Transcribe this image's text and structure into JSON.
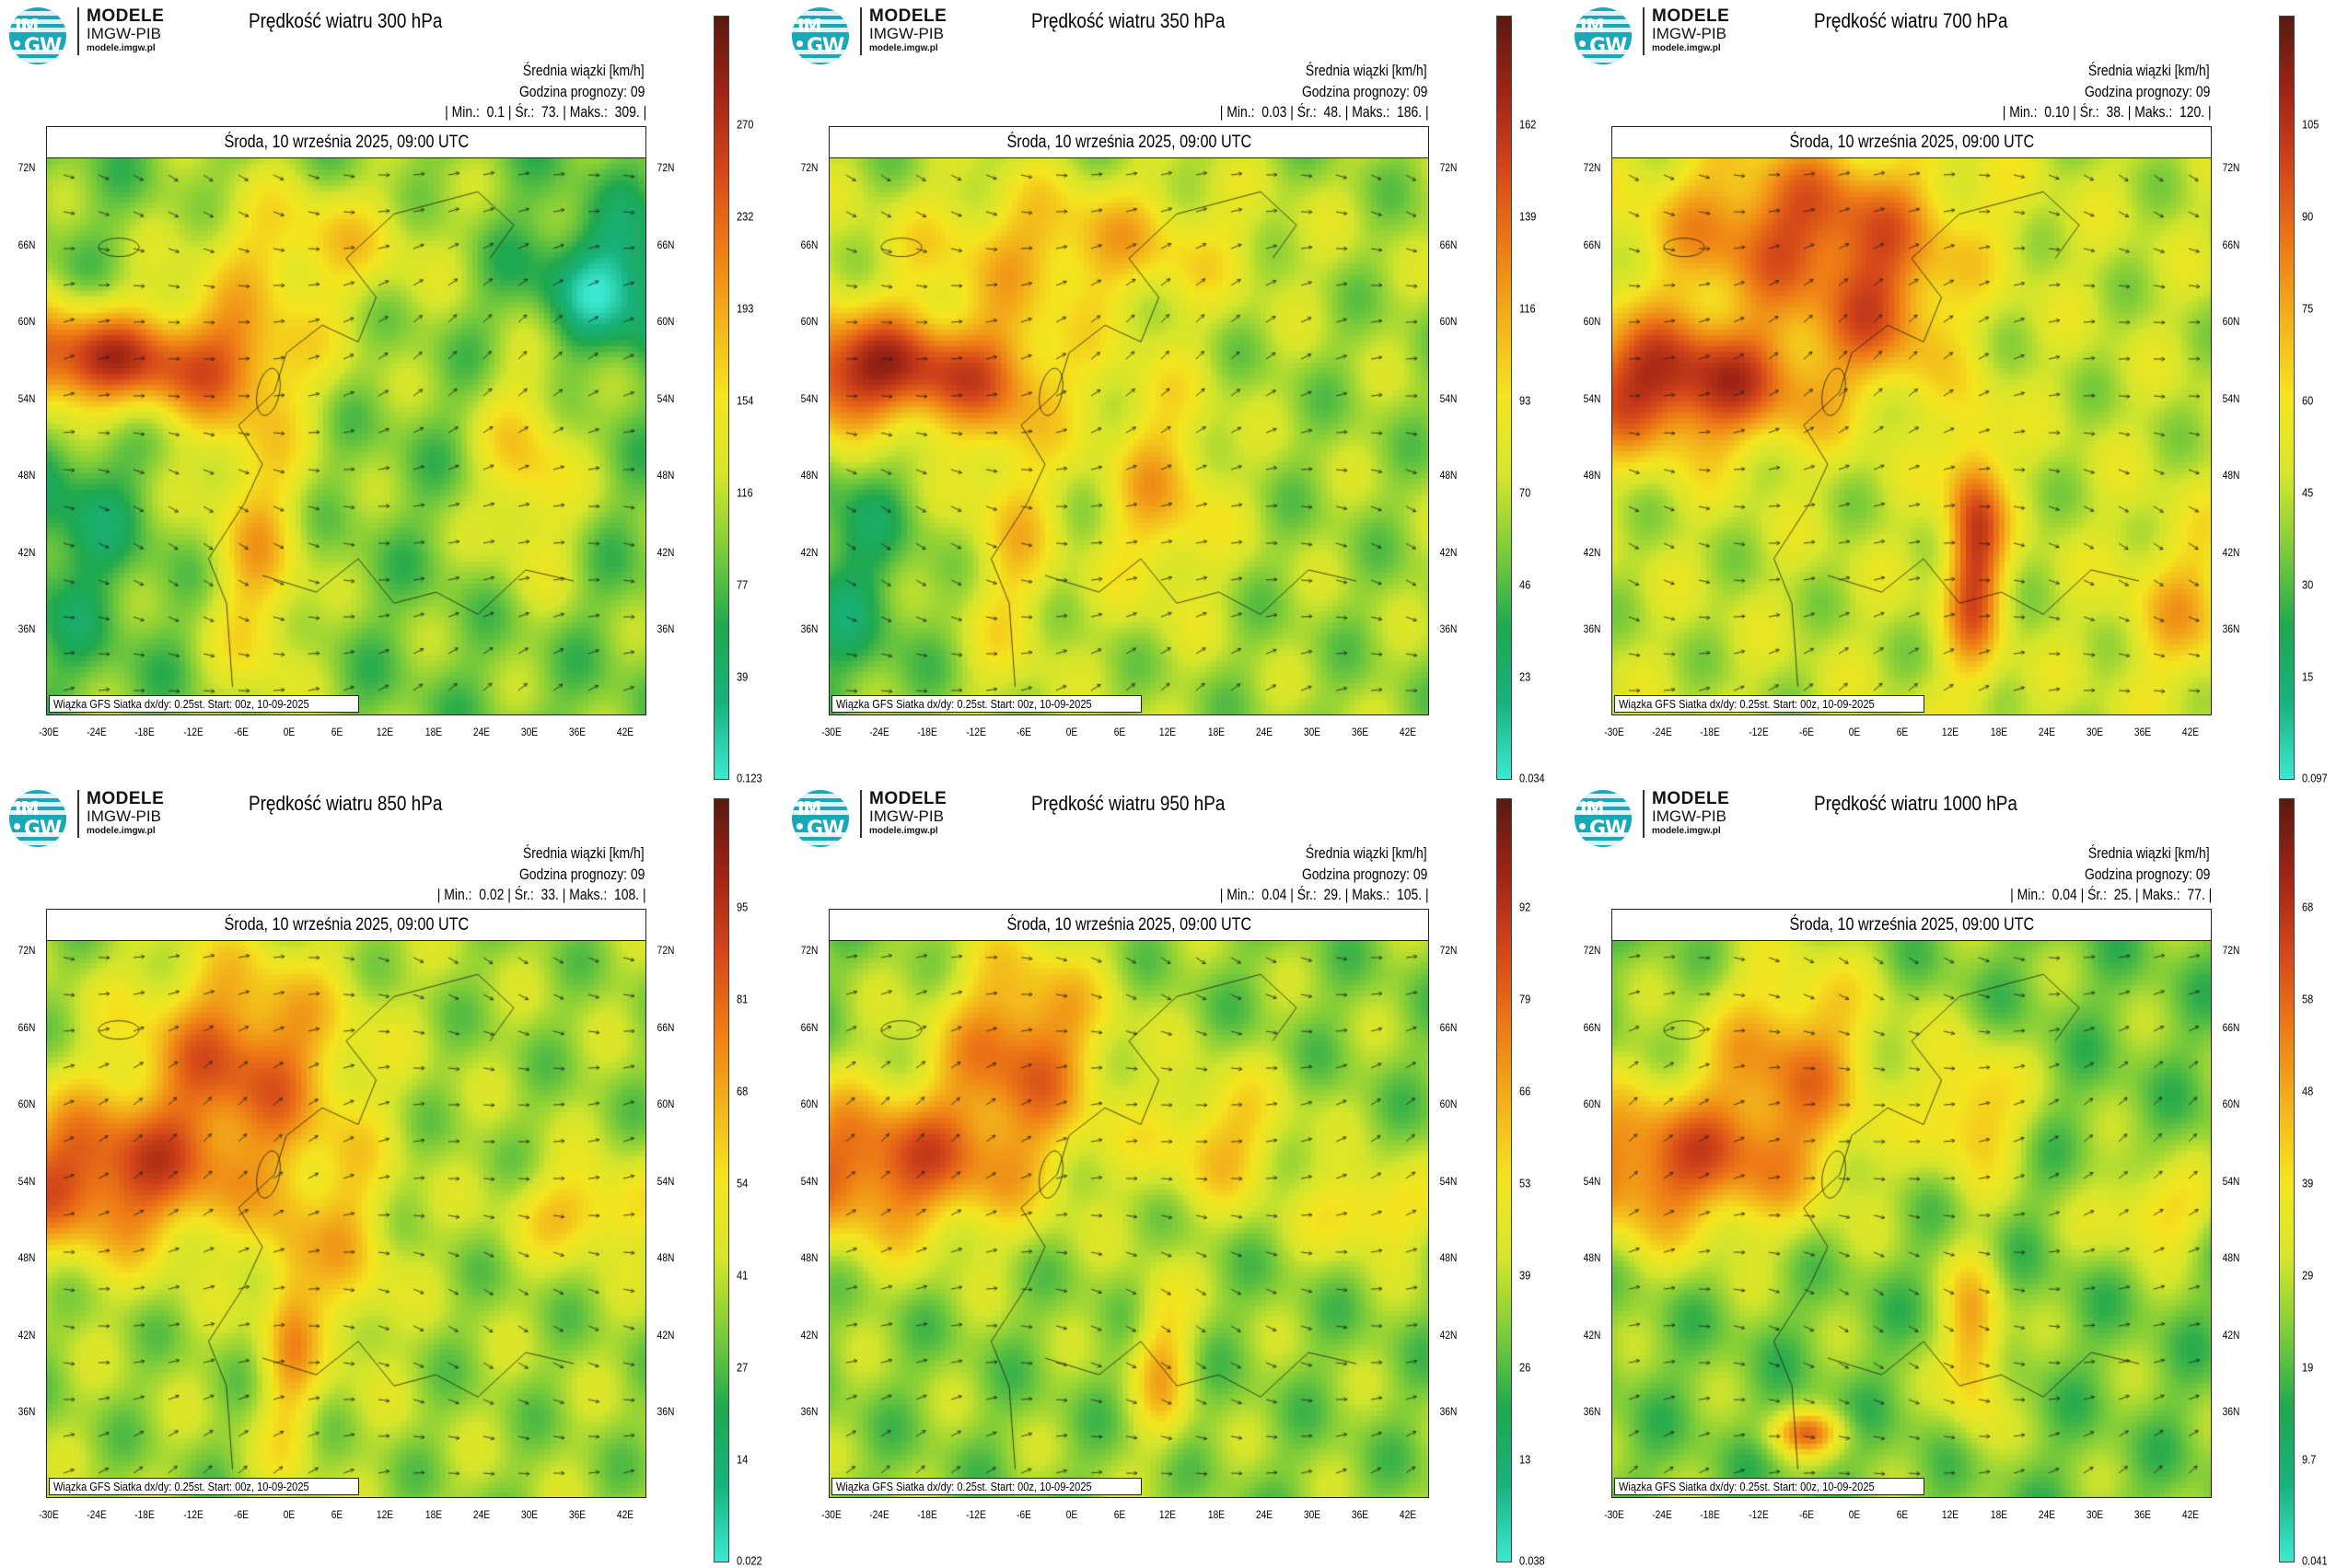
{
  "brand": {
    "name": "MODELE",
    "org": "IMGW-PIB",
    "url": "modele.imgw.pl",
    "logo_top": "IM",
    "logo_bottom": "GW",
    "logo_color": "#1aa7b8"
  },
  "common": {
    "info_line1": "Średnia wiązki [km/h]",
    "info_line2": "Godzina prognozy: 09",
    "date": "Środa, 10 września 2025, 09:00 UTC",
    "source": "Wiązka GFS Siatka dx/dy: 0.25st. Start: 00z, 10-09-2025",
    "min_label": "Min.:",
    "mean_label": "Śr.:",
    "max_label": "Maks.:"
  },
  "axes": {
    "lat_labels": [
      "72N",
      "66N",
      "60N",
      "54N",
      "48N",
      "42N",
      "36N"
    ],
    "lon_labels": [
      "-30E",
      "-24E",
      "-18E",
      "-12E",
      "-6E",
      "0E",
      "6E",
      "12E",
      "18E",
      "24E",
      "30E",
      "36E",
      "42E"
    ]
  },
  "colormap": [
    "#3de8d2",
    "#18b27e",
    "#1fa84f",
    "#7dcc3a",
    "#d6e62c",
    "#f5e51f",
    "#f3b21b",
    "#ee7a16",
    "#d4461a",
    "#a02416",
    "#5a1a10"
  ],
  "panels": [
    {
      "title": "Prędkość wiatru 300 hPa",
      "min": "0.1",
      "mean": "73.",
      "max": "309.",
      "colorbar": [
        "270",
        "232",
        "193",
        "154",
        "116",
        "77",
        "39",
        "0.123"
      ]
    },
    {
      "title": "Prędkość wiatru 350 hPa",
      "min": "0.03",
      "mean": "48.",
      "max": "186.",
      "colorbar": [
        "162",
        "139",
        "116",
        "93",
        "70",
        "46",
        "23",
        "0.034"
      ]
    },
    {
      "title": "Prędkość wiatru 700 hPa",
      "min": "0.10",
      "mean": "38.",
      "max": "120.",
      "colorbar": [
        "105",
        "90",
        "75",
        "60",
        "45",
        "30",
        "15",
        "0.097"
      ]
    },
    {
      "title": "Prędkość wiatru 850 hPa",
      "min": "0.02",
      "mean": "33.",
      "max": "108.",
      "colorbar": [
        "95",
        "81",
        "68",
        "54",
        "41",
        "27",
        "14",
        "0.022"
      ]
    },
    {
      "title": "Prędkość wiatru 950 hPa",
      "min": "0.04",
      "mean": "29.",
      "max": "105.",
      "colorbar": [
        "92",
        "79",
        "66",
        "53",
        "39",
        "26",
        "13",
        "0.038"
      ]
    },
    {
      "title": "Prędkość wiatru 1000 hPa",
      "min": "0.04",
      "mean": "25.",
      "max": "77.",
      "colorbar": [
        "68",
        "58",
        "48",
        "39",
        "29",
        "19",
        "9.7",
        "0.041"
      ]
    }
  ]
}
